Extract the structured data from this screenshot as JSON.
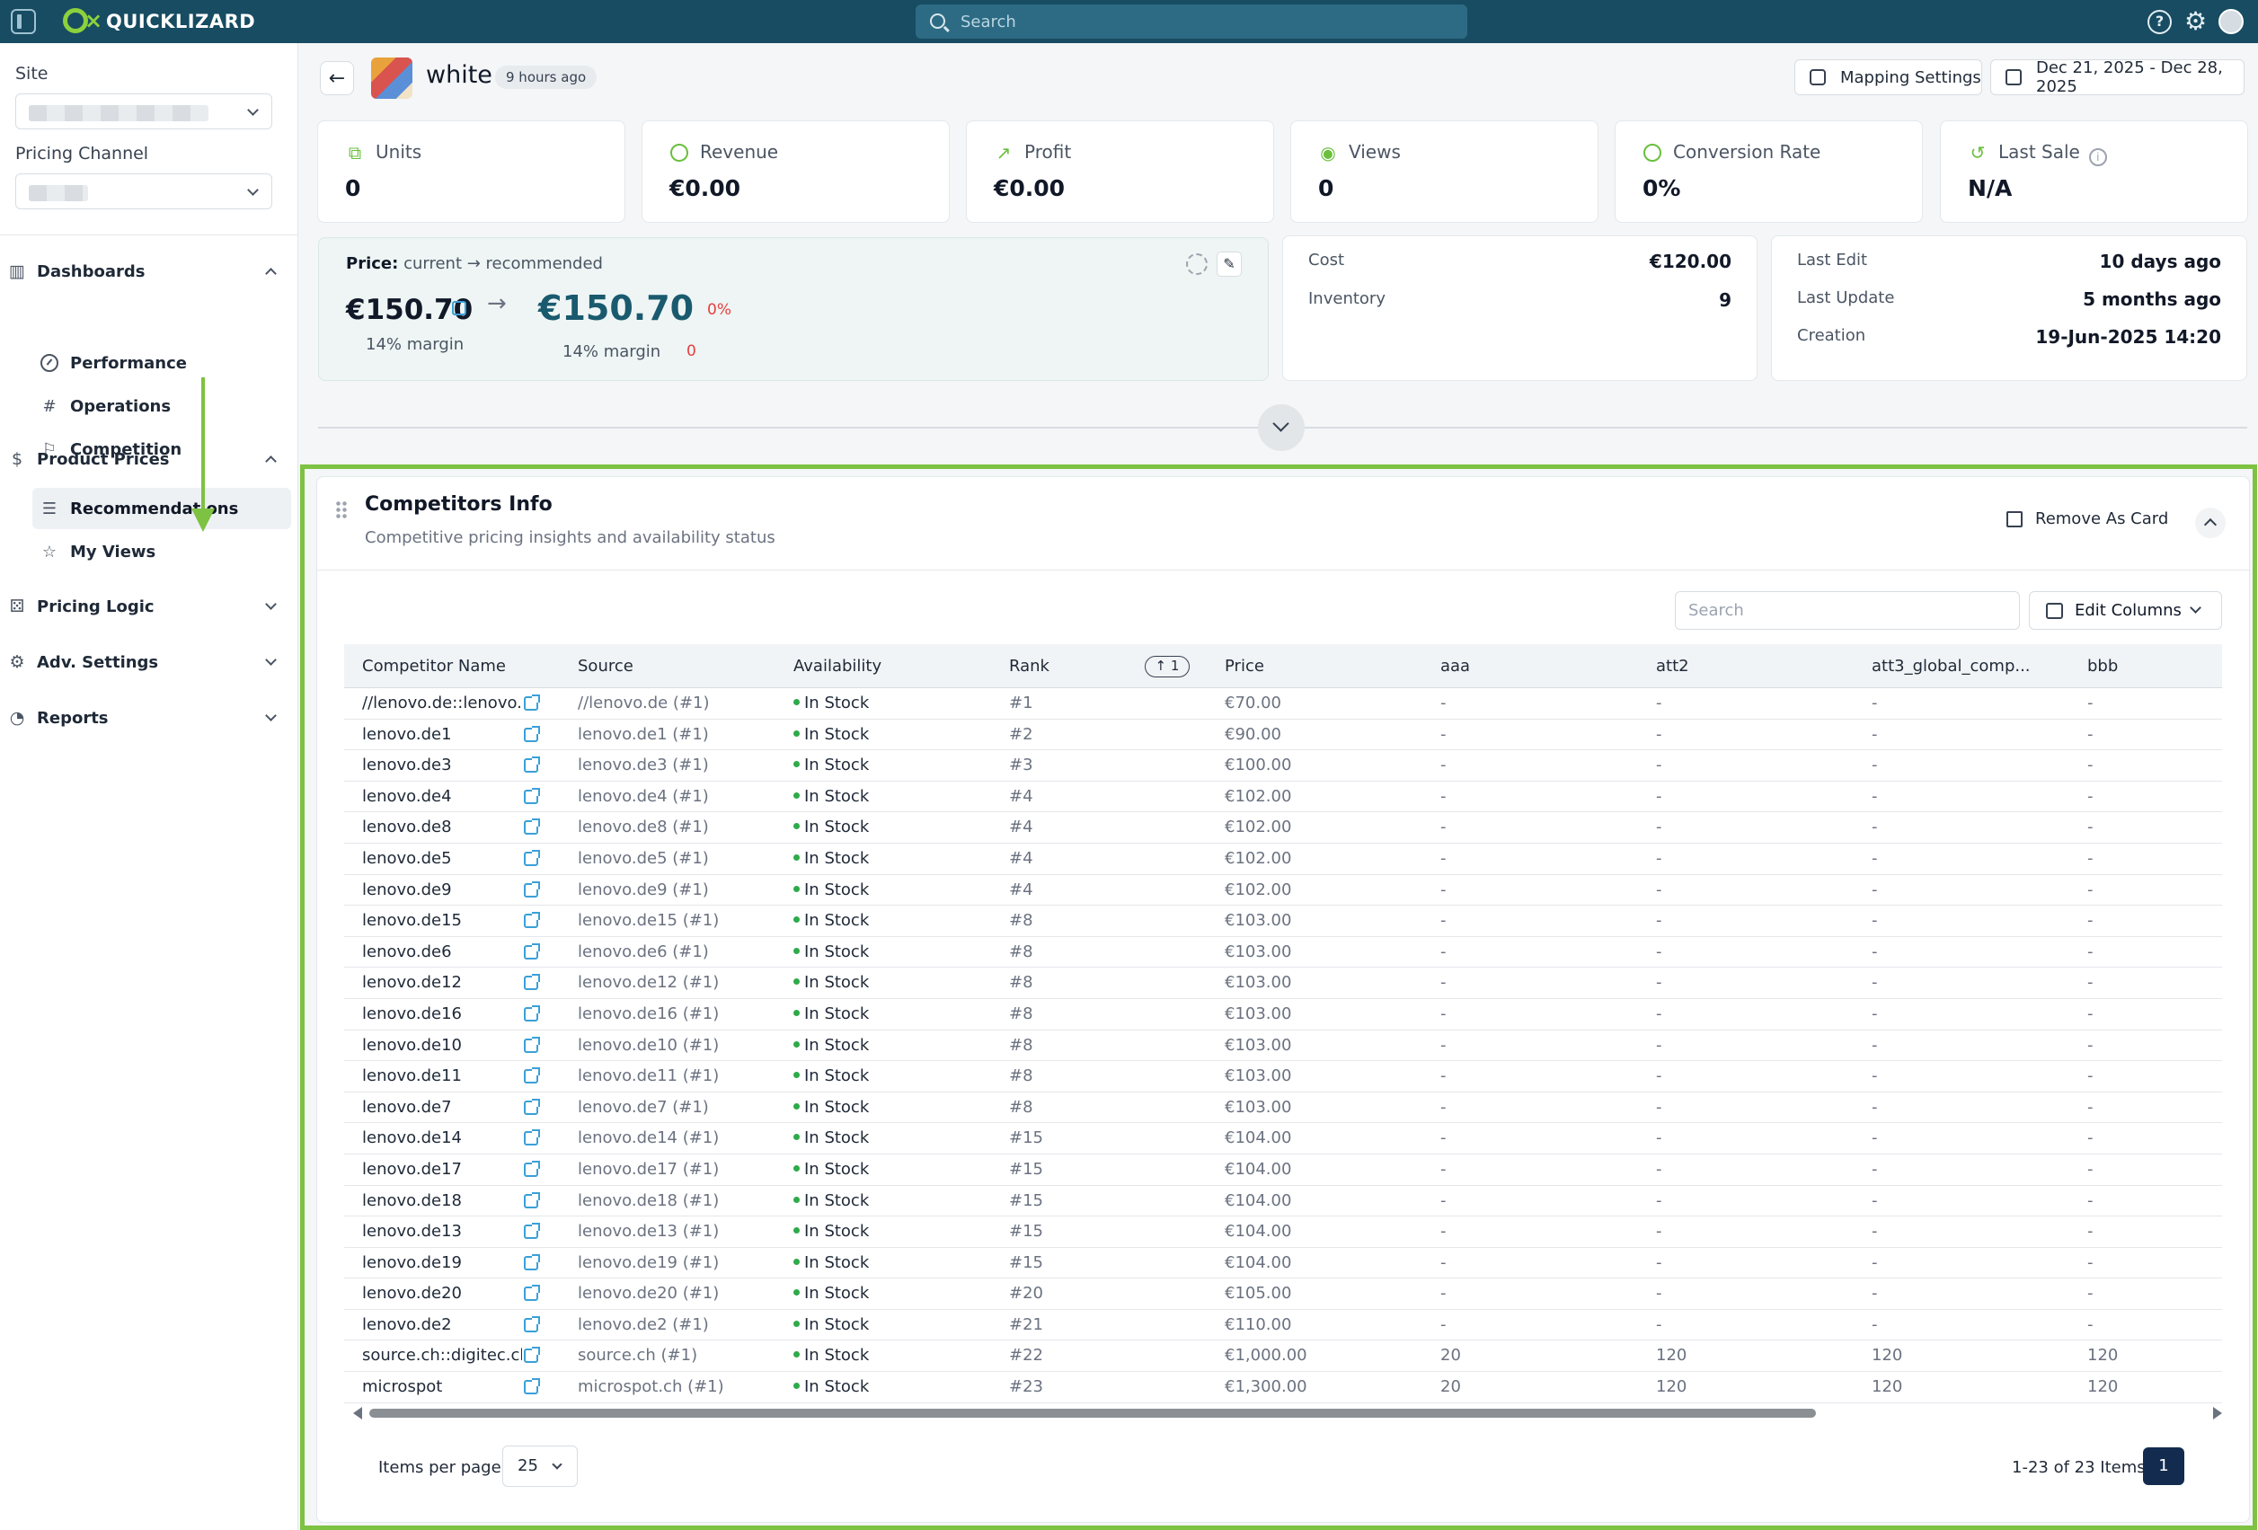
{
  "app": {
    "brand": "QUICKLIZARD",
    "search_placeholder": "Search"
  },
  "sidebar": {
    "site_label": "Site",
    "pricing_channel_label": "Pricing Channel",
    "sections": {
      "dashboards": "Dashboards",
      "product_prices": "Product Prices",
      "pricing_logic": "Pricing Logic",
      "adv_settings": "Adv. Settings",
      "reports": "Reports"
    },
    "items": {
      "performance": "Performance",
      "operations": "Operations",
      "competition": "Competition",
      "recommendations": "Recommendations",
      "my_views": "My Views"
    }
  },
  "header": {
    "product_name": "white",
    "updated": "9 hours ago",
    "mapping_settings": "Mapping Settings",
    "date_range": "Dec 21, 2025 - Dec 28, 2025"
  },
  "kpis": {
    "units": {
      "label": "Units",
      "value": "0"
    },
    "revenue": {
      "label": "Revenue",
      "value": "€0.00"
    },
    "profit": {
      "label": "Profit",
      "value": "€0.00"
    },
    "views": {
      "label": "Views",
      "value": "0"
    },
    "conversion": {
      "label": "Conversion Rate",
      "value": "0%"
    },
    "last_sale": {
      "label": "Last Sale",
      "value": "N/A"
    }
  },
  "price": {
    "label": "Price:",
    "sublabel": "current → recommended",
    "current": "€150.70",
    "recommended": "€150.70",
    "change_pct": "0%",
    "current_margin": "14% margin",
    "recommended_margin": "14% margin",
    "change_abs": "0"
  },
  "cost_card": {
    "cost_label": "Cost",
    "cost_value": "€120.00",
    "inventory_label": "Inventory",
    "inventory_value": "9"
  },
  "dates_card": {
    "last_edit_label": "Last Edit",
    "last_edit_value": "10 days ago",
    "last_update_label": "Last Update",
    "last_update_value": "5 months ago",
    "creation_label": "Creation",
    "creation_value": "19-Jun-2025 14:20"
  },
  "competitors": {
    "title": "Competitors Info",
    "subtitle": "Competitive pricing insights and availability status",
    "remove_card": "Remove As Card",
    "search_placeholder": "Search",
    "edit_columns": "Edit Columns",
    "columns": {
      "name": "Competitor Name",
      "source": "Source",
      "availability": "Availability",
      "rank": "Rank",
      "sort_badge": "1",
      "price": "Price",
      "aaa": "aaa",
      "att2": "att2",
      "att3": "att3_global_comp...",
      "bbb": "bbb"
    },
    "rows": [
      {
        "name": "//lenovo.de::lenovo.de",
        "source": "//lenovo.de (#1)",
        "availability": "In Stock",
        "rank": "#1",
        "price": "€70.00",
        "aaa": "-",
        "att2": "-",
        "att3": "-",
        "bbb": "-"
      },
      {
        "name": "lenovo.de1",
        "source": "lenovo.de1 (#1)",
        "availability": "In Stock",
        "rank": "#2",
        "price": "€90.00",
        "aaa": "-",
        "att2": "-",
        "att3": "-",
        "bbb": "-"
      },
      {
        "name": "lenovo.de3",
        "source": "lenovo.de3 (#1)",
        "availability": "In Stock",
        "rank": "#3",
        "price": "€100.00",
        "aaa": "-",
        "att2": "-",
        "att3": "-",
        "bbb": "-"
      },
      {
        "name": "lenovo.de4",
        "source": "lenovo.de4 (#1)",
        "availability": "In Stock",
        "rank": "#4",
        "price": "€102.00",
        "aaa": "-",
        "att2": "-",
        "att3": "-",
        "bbb": "-"
      },
      {
        "name": "lenovo.de8",
        "source": "lenovo.de8 (#1)",
        "availability": "In Stock",
        "rank": "#4",
        "price": "€102.00",
        "aaa": "-",
        "att2": "-",
        "att3": "-",
        "bbb": "-"
      },
      {
        "name": "lenovo.de5",
        "source": "lenovo.de5 (#1)",
        "availability": "In Stock",
        "rank": "#4",
        "price": "€102.00",
        "aaa": "-",
        "att2": "-",
        "att3": "-",
        "bbb": "-"
      },
      {
        "name": "lenovo.de9",
        "source": "lenovo.de9 (#1)",
        "availability": "In Stock",
        "rank": "#4",
        "price": "€102.00",
        "aaa": "-",
        "att2": "-",
        "att3": "-",
        "bbb": "-"
      },
      {
        "name": "lenovo.de15",
        "source": "lenovo.de15 (#1)",
        "availability": "In Stock",
        "rank": "#8",
        "price": "€103.00",
        "aaa": "-",
        "att2": "-",
        "att3": "-",
        "bbb": "-"
      },
      {
        "name": "lenovo.de6",
        "source": "lenovo.de6 (#1)",
        "availability": "In Stock",
        "rank": "#8",
        "price": "€103.00",
        "aaa": "-",
        "att2": "-",
        "att3": "-",
        "bbb": "-"
      },
      {
        "name": "lenovo.de12",
        "source": "lenovo.de12 (#1)",
        "availability": "In Stock",
        "rank": "#8",
        "price": "€103.00",
        "aaa": "-",
        "att2": "-",
        "att3": "-",
        "bbb": "-"
      },
      {
        "name": "lenovo.de16",
        "source": "lenovo.de16 (#1)",
        "availability": "In Stock",
        "rank": "#8",
        "price": "€103.00",
        "aaa": "-",
        "att2": "-",
        "att3": "-",
        "bbb": "-"
      },
      {
        "name": "lenovo.de10",
        "source": "lenovo.de10 (#1)",
        "availability": "In Stock",
        "rank": "#8",
        "price": "€103.00",
        "aaa": "-",
        "att2": "-",
        "att3": "-",
        "bbb": "-"
      },
      {
        "name": "lenovo.de11",
        "source": "lenovo.de11 (#1)",
        "availability": "In Stock",
        "rank": "#8",
        "price": "€103.00",
        "aaa": "-",
        "att2": "-",
        "att3": "-",
        "bbb": "-"
      },
      {
        "name": "lenovo.de7",
        "source": "lenovo.de7 (#1)",
        "availability": "In Stock",
        "rank": "#8",
        "price": "€103.00",
        "aaa": "-",
        "att2": "-",
        "att3": "-",
        "bbb": "-"
      },
      {
        "name": "lenovo.de14",
        "source": "lenovo.de14 (#1)",
        "availability": "In Stock",
        "rank": "#15",
        "price": "€104.00",
        "aaa": "-",
        "att2": "-",
        "att3": "-",
        "bbb": "-"
      },
      {
        "name": "lenovo.de17",
        "source": "lenovo.de17 (#1)",
        "availability": "In Stock",
        "rank": "#15",
        "price": "€104.00",
        "aaa": "-",
        "att2": "-",
        "att3": "-",
        "bbb": "-"
      },
      {
        "name": "lenovo.de18",
        "source": "lenovo.de18 (#1)",
        "availability": "In Stock",
        "rank": "#15",
        "price": "€104.00",
        "aaa": "-",
        "att2": "-",
        "att3": "-",
        "bbb": "-"
      },
      {
        "name": "lenovo.de13",
        "source": "lenovo.de13 (#1)",
        "availability": "In Stock",
        "rank": "#15",
        "price": "€104.00",
        "aaa": "-",
        "att2": "-",
        "att3": "-",
        "bbb": "-"
      },
      {
        "name": "lenovo.de19",
        "source": "lenovo.de19 (#1)",
        "availability": "In Stock",
        "rank": "#15",
        "price": "€104.00",
        "aaa": "-",
        "att2": "-",
        "att3": "-",
        "bbb": "-"
      },
      {
        "name": "lenovo.de20",
        "source": "lenovo.de20 (#1)",
        "availability": "In Stock",
        "rank": "#20",
        "price": "€105.00",
        "aaa": "-",
        "att2": "-",
        "att3": "-",
        "bbb": "-"
      },
      {
        "name": "lenovo.de2",
        "source": "lenovo.de2 (#1)",
        "availability": "In Stock",
        "rank": "#21",
        "price": "€110.00",
        "aaa": "-",
        "att2": "-",
        "att3": "-",
        "bbb": "-"
      },
      {
        "name": "source.ch::digitec.ch",
        "source": "source.ch (#1)",
        "availability": "In Stock",
        "rank": "#22",
        "price": "€1,000.00",
        "aaa": "20",
        "att2": "120",
        "att3": "120",
        "bbb": "120"
      },
      {
        "name": "microspot",
        "source": "microspot.ch (#1)",
        "availability": "In Stock",
        "rank": "#23",
        "price": "€1,300.00",
        "aaa": "20",
        "att2": "120",
        "att3": "120",
        "bbb": "120"
      }
    ],
    "items_per_page_label": "Items per page",
    "items_per_page": "25",
    "range_text": "1-23 of 23 Items",
    "current_page": "1"
  }
}
